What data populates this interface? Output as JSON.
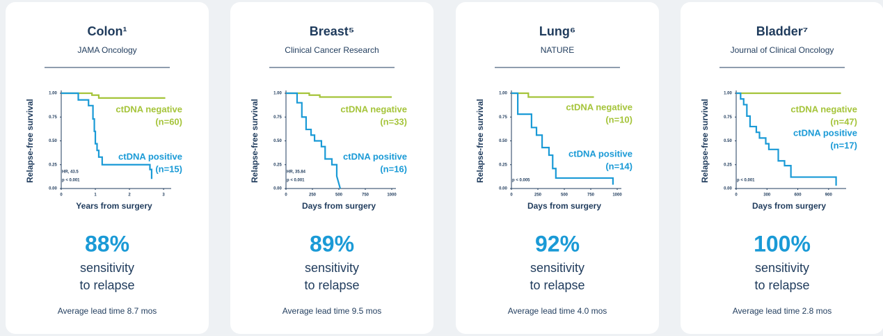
{
  "chart_data": [
    {
      "type": "line",
      "title": "Colon¹",
      "subtitle": "JAMA Oncology",
      "ylabel": "Relapse-free survival",
      "xlabel": "Years from surgery",
      "xlim": [
        0,
        3.1
      ],
      "xticks": [
        0,
        1,
        2,
        3
      ],
      "ylim": [
        0,
        1
      ],
      "yticks": [
        {
          "value": 0,
          "label": "0.00"
        },
        0.25,
        {
          "value": 0.5,
          "label": "0.50"
        },
        0.75,
        {
          "value": 1,
          "label": "1.00"
        }
      ],
      "series": [
        {
          "name": "ctDNA negative",
          "count_label": "(n=60)",
          "color": "#a5c43a",
          "x": [
            0,
            0.9,
            0.9,
            1.1,
            1.1,
            3.05
          ],
          "y": [
            1,
            1,
            0.98,
            0.98,
            0.95,
            0.95
          ]
        },
        {
          "name": "ctDNA positive",
          "count_label": "(n=15)",
          "color": "#1a9ad6",
          "x": [
            0,
            0.5,
            0.5,
            0.8,
            0.8,
            0.93,
            0.93,
            0.97,
            0.97,
            1.0,
            1.0,
            1.05,
            1.05,
            1.1,
            1.1,
            1.2,
            1.2,
            2.6,
            2.6,
            2.65,
            2.65
          ],
          "y": [
            1,
            1,
            0.93,
            0.93,
            0.87,
            0.87,
            0.73,
            0.73,
            0.6,
            0.6,
            0.47,
            0.47,
            0.4,
            0.4,
            0.33,
            0.33,
            0.25,
            0.25,
            0.2,
            0.2,
            0.1
          ]
        }
      ],
      "annotations": [
        "HR, 43.5",
        "p < 0.001"
      ],
      "sensitivity_label": "88%",
      "sensitivity_text": [
        "sensitivity",
        "to relapse"
      ],
      "lead_time": "Average lead time 8.7 mos"
    },
    {
      "type": "line",
      "title": "Breast⁵",
      "subtitle": "Clinical Cancer Research",
      "ylabel": "Relapse-free survival",
      "xlabel": "Days from surgery",
      "xlim": [
        0,
        1000
      ],
      "xticks": [
        0,
        250,
        500,
        750,
        1000
      ],
      "ylim": [
        0,
        1
      ],
      "yticks": [
        {
          "value": 0,
          "label": "0.00"
        },
        0.25,
        {
          "value": 0.5,
          "label": "0.50"
        },
        0.75,
        {
          "value": 1,
          "label": "1.00"
        }
      ],
      "series": [
        {
          "name": "ctDNA negative",
          "count_label": "(n=33)",
          "color": "#a5c43a",
          "x": [
            0,
            220,
            220,
            320,
            320,
            1000
          ],
          "y": [
            1,
            1,
            0.98,
            0.98,
            0.96,
            0.96
          ]
        },
        {
          "name": "ctDNA positive",
          "count_label": "(n=16)",
          "color": "#1a9ad6",
          "x": [
            0,
            105,
            105,
            150,
            150,
            190,
            190,
            237,
            237,
            270,
            270,
            335,
            335,
            370,
            370,
            434,
            434,
            480,
            480,
            513
          ],
          "y": [
            1,
            1,
            0.9,
            0.9,
            0.75,
            0.75,
            0.62,
            0.62,
            0.56,
            0.56,
            0.5,
            0.5,
            0.44,
            0.44,
            0.31,
            0.31,
            0.25,
            0.25,
            0.13,
            0
          ]
        }
      ],
      "annotations": [
        "HR, 35.84",
        "p < 0.001"
      ],
      "sensitivity_label": "89%",
      "sensitivity_text": [
        "sensitivity",
        "to relapse"
      ],
      "lead_time": "Average lead time 9.5 mos"
    },
    {
      "type": "line",
      "title": "Lung⁶",
      "subtitle": "NATURE",
      "ylabel": "Relapse-free survival",
      "xlabel": "Days from surgery",
      "xlim": [
        0,
        1000
      ],
      "xticks": [
        0,
        250,
        500,
        750,
        1000
      ],
      "ylim": [
        0,
        1
      ],
      "yticks": [
        {
          "value": 0,
          "label": "0.00"
        },
        0.25,
        {
          "value": 0.5,
          "label": "0.50"
        },
        0.75,
        {
          "value": 1,
          "label": "1.00"
        }
      ],
      "series": [
        {
          "name": "ctDNA negative",
          "count_label": "(n=10)",
          "color": "#a5c43a",
          "x": [
            0,
            160,
            160,
            780
          ],
          "y": [
            1,
            1,
            0.96,
            0.96
          ]
        },
        {
          "name": "ctDNA positive",
          "count_label": "(n=14)",
          "color": "#1a9ad6",
          "x": [
            0,
            60,
            60,
            190,
            190,
            237,
            237,
            290,
            290,
            355,
            355,
            390,
            390,
            420,
            420,
            960,
            960
          ],
          "y": [
            1,
            1,
            0.78,
            0.78,
            0.64,
            0.64,
            0.56,
            0.56,
            0.43,
            0.43,
            0.35,
            0.35,
            0.21,
            0.21,
            0.11,
            0.11,
            0.04
          ]
        }
      ],
      "annotations": [
        "p < 0.005"
      ],
      "sensitivity_label": "92%",
      "sensitivity_text": [
        "sensitivity",
        "to relapse"
      ],
      "lead_time": "Average lead time 4.0 mos"
    },
    {
      "type": "line",
      "title": "Bladder⁷",
      "subtitle": "Journal of Clinical Oncology",
      "ylabel": "Relapse-free survival",
      "xlabel": "Days from surgery",
      "xlim": [
        0,
        1030
      ],
      "xticks": [
        0,
        300,
        600,
        900
      ],
      "ylim": [
        0,
        1
      ],
      "yticks": [
        {
          "value": 0,
          "label": "0.00"
        },
        0.25,
        {
          "value": 0.5,
          "label": "0.50"
        },
        0.75,
        {
          "value": 1,
          "label": "1.00"
        }
      ],
      "series": [
        {
          "name": "ctDNA negative",
          "count_label": "(n=47)",
          "color": "#a5c43a",
          "x": [
            0,
            1020
          ],
          "y": [
            1,
            1
          ]
        },
        {
          "name": "ctDNA positive",
          "count_label": "(n=17)",
          "color": "#1a9ad6",
          "x": [
            0,
            43,
            43,
            73,
            73,
            104,
            104,
            135,
            135,
            196,
            196,
            227,
            227,
            288,
            288,
            318,
            318,
            410,
            410,
            471,
            471,
            533,
            533,
            973,
            973
          ],
          "y": [
            1,
            1,
            0.94,
            0.94,
            0.88,
            0.88,
            0.76,
            0.76,
            0.65,
            0.65,
            0.59,
            0.59,
            0.53,
            0.53,
            0.47,
            0.47,
            0.41,
            0.41,
            0.29,
            0.29,
            0.24,
            0.24,
            0.12,
            0.12,
            0.03
          ]
        }
      ],
      "annotations": [
        "p < 0.001"
      ],
      "sensitivity_label": "100%",
      "sensitivity_text": [
        "sensitivity",
        "to relapse"
      ],
      "lead_time": "Average lead time 2.8 mos"
    }
  ]
}
